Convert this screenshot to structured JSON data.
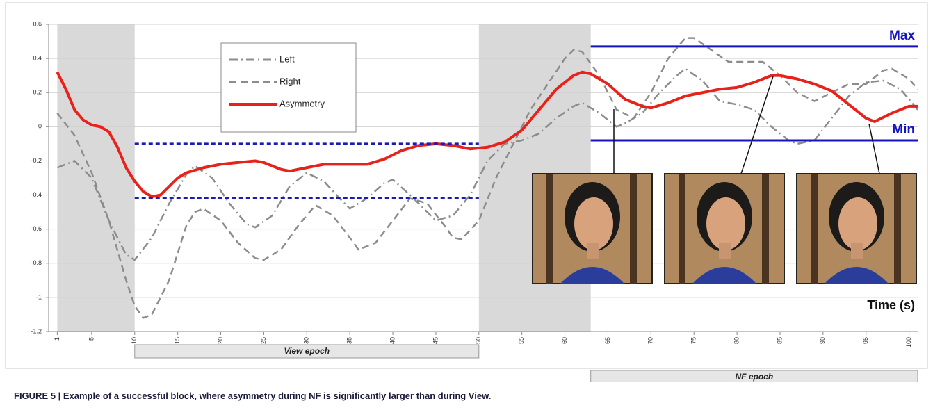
{
  "chart_data": {
    "type": "line",
    "xlim": [
      0,
      101
    ],
    "ylim": [
      -1.2,
      0.6
    ],
    "xticks": [
      1,
      5,
      10,
      15,
      20,
      25,
      30,
      35,
      40,
      45,
      50,
      55,
      60,
      65,
      70,
      75,
      80,
      85,
      90,
      95,
      100
    ],
    "yticks": [
      0.6,
      0.4,
      0.2,
      0,
      -0.2,
      -0.4,
      -0.6,
      -0.8,
      -1,
      -1.2
    ],
    "grid": true,
    "x_label": "Time (s)",
    "shaded": [
      [
        1,
        10
      ],
      [
        50,
        63
      ]
    ],
    "epochs": [
      {
        "label": "View epoch",
        "range": [
          10,
          50
        ]
      },
      {
        "label": "NF epoch",
        "range": [
          63,
          101
        ]
      }
    ],
    "reference_lines": [
      {
        "value": -0.1,
        "range": [
          10,
          50
        ],
        "color": "#1a1ab8",
        "style": "dashed"
      },
      {
        "value": -0.42,
        "range": [
          10,
          50
        ],
        "color": "#1a1ab8",
        "style": "dashed"
      },
      {
        "value": 0.47,
        "range": [
          63,
          101
        ],
        "color": "#1515c0",
        "style": "solid",
        "label": "Max"
      },
      {
        "value": -0.08,
        "range": [
          63,
          101
        ],
        "color": "#1515c0",
        "style": "solid",
        "label": "Min"
      }
    ],
    "series": [
      {
        "name": "Left",
        "color": "#8c8c8c",
        "style": "dashdot",
        "x": [
          1,
          3,
          5,
          7,
          9,
          10,
          12,
          14,
          16,
          17,
          19,
          21,
          23,
          24,
          26,
          28,
          30,
          32,
          34,
          35,
          37,
          39,
          40,
          42,
          44,
          45,
          47,
          49,
          51,
          53,
          55,
          57,
          59,
          61,
          62,
          64,
          66,
          67,
          69,
          71,
          73,
          74,
          76,
          78,
          80,
          82,
          84,
          86,
          87,
          89,
          91,
          93,
          95,
          97,
          99,
          101
        ],
        "values": [
          -0.24,
          -0.2,
          -0.3,
          -0.55,
          -0.75,
          -0.78,
          -0.65,
          -0.45,
          -0.28,
          -0.23,
          -0.3,
          -0.45,
          -0.57,
          -0.59,
          -0.52,
          -0.35,
          -0.27,
          -0.32,
          -0.43,
          -0.48,
          -0.42,
          -0.33,
          -0.31,
          -0.4,
          -0.5,
          -0.55,
          -0.52,
          -0.4,
          -0.2,
          -0.1,
          -0.08,
          -0.04,
          0.05,
          0.12,
          0.14,
          0.08,
          0,
          0.02,
          0.08,
          0.2,
          0.3,
          0.34,
          0.27,
          0.15,
          0.13,
          0.1,
          0,
          -0.08,
          -0.1,
          -0.08,
          0.05,
          0.18,
          0.26,
          0.27,
          0.22,
          0.1
        ]
      },
      {
        "name": "Right",
        "color": "#8c8c8c",
        "style": "dashed",
        "x": [
          1,
          3,
          5,
          7,
          9,
          10,
          11,
          12,
          14,
          16,
          17,
          18,
          20,
          22,
          24,
          25,
          27,
          29,
          31,
          33,
          35,
          36,
          38,
          40,
          42,
          44,
          46,
          47,
          48,
          50,
          52,
          54,
          56,
          58,
          60,
          61,
          62,
          64,
          66,
          68,
          70,
          72,
          74,
          75,
          77,
          79,
          81,
          83,
          85,
          87,
          89,
          91,
          93,
          95,
          97,
          98,
          100,
          101
        ],
        "values": [
          0.08,
          -0.05,
          -0.27,
          -0.55,
          -0.9,
          -1.05,
          -1.12,
          -1.1,
          -0.9,
          -0.58,
          -0.5,
          -0.48,
          -0.55,
          -0.68,
          -0.77,
          -0.78,
          -0.72,
          -0.58,
          -0.46,
          -0.52,
          -0.65,
          -0.72,
          -0.68,
          -0.55,
          -0.42,
          -0.45,
          -0.58,
          -0.65,
          -0.66,
          -0.55,
          -0.3,
          -0.1,
          0.1,
          0.25,
          0.4,
          0.45,
          0.44,
          0.3,
          0.1,
          0.05,
          0.2,
          0.4,
          0.52,
          0.52,
          0.45,
          0.38,
          0.38,
          0.38,
          0.3,
          0.2,
          0.15,
          0.2,
          0.25,
          0.25,
          0.33,
          0.34,
          0.28,
          0.22
        ]
      },
      {
        "name": "Asymmetry",
        "color": "#e8211b",
        "style": "solid",
        "x": [
          1,
          2,
          3,
          4,
          5,
          6,
          7,
          8,
          9,
          10,
          11,
          12,
          13,
          14,
          15,
          16,
          18,
          20,
          22,
          24,
          25,
          27,
          28,
          30,
          32,
          35,
          37,
          39,
          41,
          43,
          45,
          47,
          49,
          51,
          53,
          55,
          57,
          59,
          61,
          62,
          63,
          65,
          67,
          69,
          70,
          72,
          74,
          76,
          78,
          80,
          82,
          84,
          85,
          87,
          89,
          91,
          93,
          95,
          96,
          98,
          100,
          101
        ],
        "values": [
          0.32,
          0.22,
          0.1,
          0.04,
          0.01,
          0,
          -0.03,
          -0.12,
          -0.24,
          -0.32,
          -0.38,
          -0.41,
          -0.4,
          -0.35,
          -0.3,
          -0.27,
          -0.24,
          -0.22,
          -0.21,
          -0.2,
          -0.21,
          -0.25,
          -0.26,
          -0.24,
          -0.22,
          -0.22,
          -0.22,
          -0.19,
          -0.14,
          -0.11,
          -0.1,
          -0.11,
          -0.13,
          -0.12,
          -0.09,
          -0.02,
          0.1,
          0.22,
          0.3,
          0.32,
          0.31,
          0.25,
          0.16,
          0.12,
          0.11,
          0.14,
          0.18,
          0.2,
          0.22,
          0.23,
          0.26,
          0.3,
          0.3,
          0.28,
          0.25,
          0.21,
          0.13,
          0.05,
          0.03,
          0.08,
          0.12,
          0.12
        ]
      }
    ],
    "caption": "FIGURE 5 | Example of a successful block, where asymmetry during NF is significantly larger than during View."
  }
}
